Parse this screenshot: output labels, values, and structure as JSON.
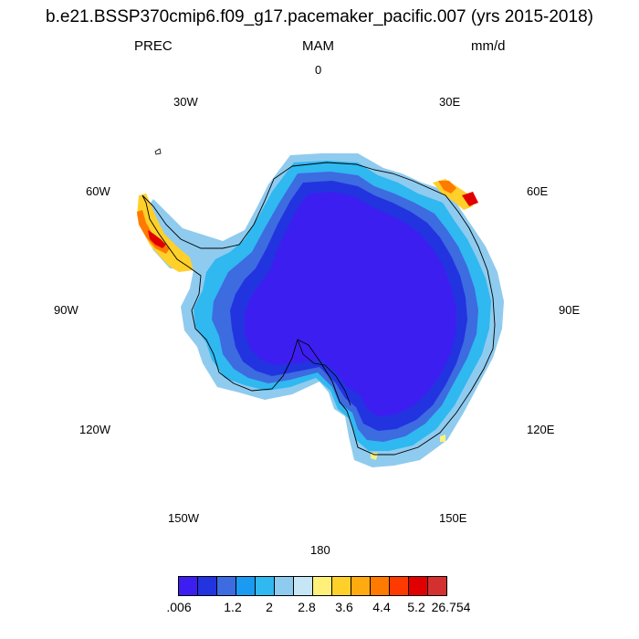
{
  "title": "b.e21.BSSP370cmip6.f09_g17.pacemaker_pacific.007 (yrs 2015-2018)",
  "variable": "PREC",
  "season": "MAM",
  "units": "mm/d",
  "longitude_labels": {
    "lon_0": "0",
    "lon_30e": "30E",
    "lon_60e": "60E",
    "lon_90e": "90E",
    "lon_120e": "120E",
    "lon_150e": "150E",
    "lon_180": "180",
    "lon_150w": "150W",
    "lon_120w": "120W",
    "lon_90w": "90W",
    "lon_60w": "60W",
    "lon_30w": "30W"
  },
  "colorbar": {
    "colors": [
      "#3c1ff0",
      "#2233e0",
      "#3d6be0",
      "#1a9af0",
      "#30b8f0",
      "#8fcbee",
      "#c6e6f6",
      "#fff07a",
      "#ffd02a",
      "#ffaa10",
      "#ff7a00",
      "#ff3a00",
      "#e00000",
      "#d43030"
    ],
    "tick_labels": [
      ".006",
      "1.2",
      "2",
      "2.8",
      "3.6",
      "4.4",
      "5.2",
      "26.754"
    ]
  }
}
